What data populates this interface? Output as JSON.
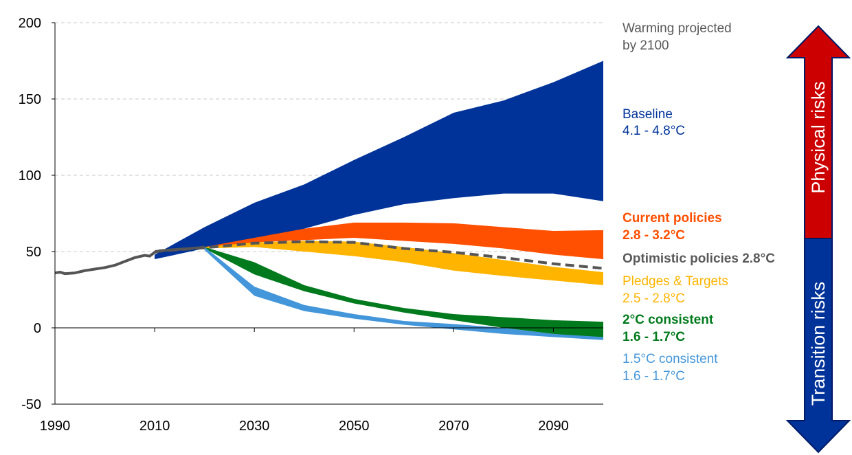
{
  "chart_data": {
    "type": "area",
    "x_axis": {
      "min": 1990,
      "max": 2100,
      "ticks": [
        1990,
        2010,
        2030,
        2050,
        2070,
        2090
      ],
      "grid": false
    },
    "y_axis": {
      "min": -50,
      "max": 200,
      "ticks": [
        200,
        150,
        100,
        50,
        0,
        -50
      ],
      "grid": true,
      "grid_style": "dashed"
    },
    "historical": {
      "color": "#555555",
      "x": [
        1990,
        1991,
        1992,
        1994,
        1996,
        1998,
        2000,
        2002,
        2004,
        2006,
        2008,
        2009,
        2010,
        2011,
        2013,
        2015,
        2017,
        2019,
        2020
      ],
      "y": [
        36,
        36.5,
        35.5,
        36,
        37.5,
        38.5,
        39.5,
        41,
        43.5,
        46,
        47.5,
        47,
        49.5,
        50.5,
        51,
        51.5,
        52,
        52.5,
        53
      ]
    },
    "bands": [
      {
        "key": "baseline",
        "color": "#003399",
        "x": [
          2010,
          2020,
          2030,
          2040,
          2050,
          2060,
          2070,
          2080,
          2090,
          2100
        ],
        "upper": [
          48,
          66,
          82,
          94,
          110,
          125,
          141,
          149,
          161,
          175
        ],
        "lower": [
          45,
          52,
          58,
          65,
          74,
          81,
          85,
          88,
          88,
          83
        ]
      },
      {
        "key": "current_policies",
        "color": "#FF4F00",
        "x": [
          2020,
          2030,
          2040,
          2050,
          2060,
          2070,
          2080,
          2090,
          2100
        ],
        "upper": [
          53,
          59,
          65,
          69,
          69,
          68.5,
          66,
          63.5,
          64
        ],
        "lower": [
          52,
          56,
          57.5,
          59,
          57,
          55,
          52,
          48,
          45
        ]
      },
      {
        "key": "pledges_targets",
        "color": "#FFB400",
        "x": [
          2020,
          2030,
          2040,
          2050,
          2060,
          2070,
          2080,
          2090,
          2100
        ],
        "upper": [
          53,
          56,
          57,
          56.5,
          53,
          49,
          44.5,
          40,
          36.5
        ],
        "lower": [
          52,
          53,
          50,
          47,
          43,
          37.5,
          34,
          31,
          28
        ]
      },
      {
        "key": "two_degree",
        "color": "#007A1C",
        "x": [
          2020,
          2030,
          2040,
          2050,
          2060,
          2070,
          2080,
          2090,
          2100
        ],
        "upper": [
          53,
          43,
          28,
          19,
          13,
          9,
          7,
          5,
          4
        ],
        "lower": [
          52,
          35,
          24,
          16,
          10,
          5,
          0,
          -4,
          -7
        ]
      },
      {
        "key": "one_five_degree",
        "color": "#4496DA",
        "x": [
          2020,
          2030,
          2040,
          2050,
          2060,
          2070,
          2080,
          2090,
          2100
        ],
        "upper": [
          53,
          27,
          15,
          9,
          4.5,
          2.5,
          0,
          -4,
          -6
        ],
        "lower": [
          51,
          21,
          11,
          6,
          2,
          -1,
          -4,
          -6,
          -8
        ]
      }
    ],
    "optimistic_line": {
      "color": "#555555",
      "style": "dashed",
      "x": [
        2010,
        2020,
        2030,
        2040,
        2050,
        2060,
        2070,
        2080,
        2090,
        2100
      ],
      "y": [
        50,
        52.5,
        55.5,
        56.5,
        56,
        52,
        49.5,
        46,
        42,
        39
      ]
    }
  },
  "labels": {
    "warming_line1": "Warming projected",
    "warming_line2": "by 2100",
    "baseline_name": "Baseline",
    "baseline_range": "4.1 - 4.8°C",
    "current_name": "Current policies",
    "current_range": "2.8 - 3.2°C",
    "optimistic": "Optimistic policies 2.8°C",
    "pledges_name": "Pledges  & Targets",
    "pledges_range": "2.5 - 2.8°C",
    "two_name": "2°C consistent",
    "two_range": "1.6 - 1.7°C",
    "onefive_name": "1.5°C consistent",
    "onefive_range": "1.6 - 1.7°C"
  },
  "colors": {
    "warming_text": "#595959",
    "baseline": "#003399",
    "current": "#FF4F00",
    "optimistic_text": "#595959",
    "pledges": "#FFB400",
    "two_degree": "#007A1C",
    "one_five_degree": "#4496DA"
  },
  "arrow": {
    "top_label": "Physical risks",
    "bottom_label": "Transition risks",
    "top_color": "#CC0000",
    "bottom_color": "#003399"
  }
}
